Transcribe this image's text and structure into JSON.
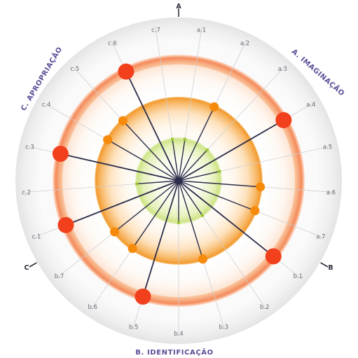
{
  "chart_data": {
    "type": "radial",
    "sector_labels": [
      {
        "id": "A",
        "text": "A. IMAGINAÇÃO"
      },
      {
        "id": "B",
        "text": "B. IDENTIFICAÇÃO"
      },
      {
        "id": "C",
        "text": "C. APROPRIAÇÃO"
      }
    ],
    "boundary_labels": [
      "A",
      "B",
      "C"
    ],
    "axes": [
      "a.1",
      "a.2",
      "a.3",
      "a.4",
      "a.5",
      "a.6",
      "a.7",
      "b.1",
      "b.2",
      "b.3",
      "b.4",
      "b.5",
      "b.6",
      "b.7",
      "c.1",
      "c.2",
      "c.3",
      "c.4",
      "c.5",
      "c.6",
      "c.7"
    ],
    "levels": [
      1,
      2,
      3
    ],
    "values": [
      1,
      2,
      1,
      3,
      1,
      2,
      2,
      3,
      1,
      2,
      1,
      3,
      2,
      2,
      3,
      1,
      3,
      2,
      2,
      3,
      1
    ],
    "level_colors": {
      "1": "#9cc53a",
      "2": "#f58a0b",
      "3": "#f2401d"
    },
    "spoke_color": "#2b2d4a"
  }
}
